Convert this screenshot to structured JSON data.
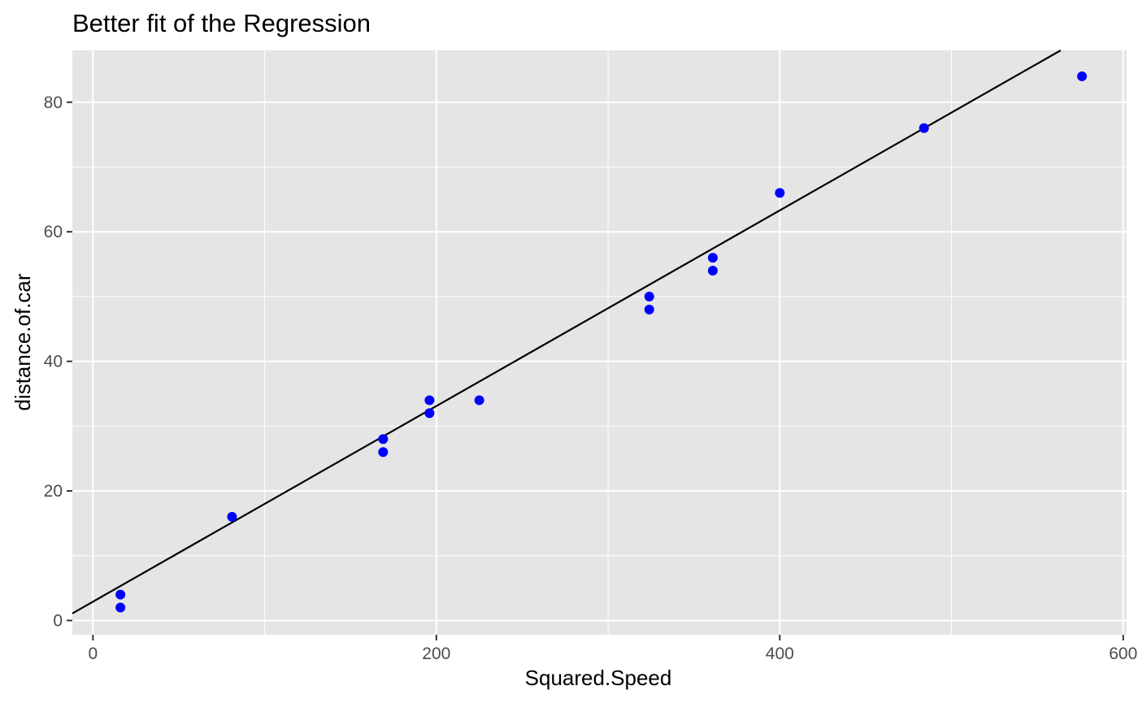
{
  "chart_data": {
    "type": "scatter",
    "title": "Better fit of the Regression",
    "xlabel": "Squared.Speed",
    "ylabel": "distance.of.car",
    "xlim": [
      -12,
      602
    ],
    "ylim": [
      -2.2,
      88
    ],
    "x_ticks": [
      0,
      200,
      400,
      600
    ],
    "y_ticks": [
      0,
      20,
      40,
      60,
      80
    ],
    "x_tick_labels": [
      "0",
      "200",
      "400",
      "600"
    ],
    "y_tick_labels": [
      "0",
      "20",
      "40",
      "60",
      "80"
    ],
    "grid": true,
    "panel_background": "#e5e5e5",
    "grid_color": "#ffffff",
    "point_color": "#0000ff",
    "line_color": "#000000",
    "points": [
      {
        "x": 16,
        "y": 2
      },
      {
        "x": 16,
        "y": 4
      },
      {
        "x": 81,
        "y": 16
      },
      {
        "x": 169,
        "y": 26
      },
      {
        "x": 169,
        "y": 28
      },
      {
        "x": 196,
        "y": 32
      },
      {
        "x": 196,
        "y": 34
      },
      {
        "x": 225,
        "y": 34
      },
      {
        "x": 324,
        "y": 48
      },
      {
        "x": 324,
        "y": 50
      },
      {
        "x": 361,
        "y": 54
      },
      {
        "x": 361,
        "y": 56
      },
      {
        "x": 400,
        "y": 66
      },
      {
        "x": 484,
        "y": 76
      },
      {
        "x": 576,
        "y": 84
      }
    ],
    "regression_line": {
      "intercept": 2.9,
      "slope": 0.151
    }
  }
}
